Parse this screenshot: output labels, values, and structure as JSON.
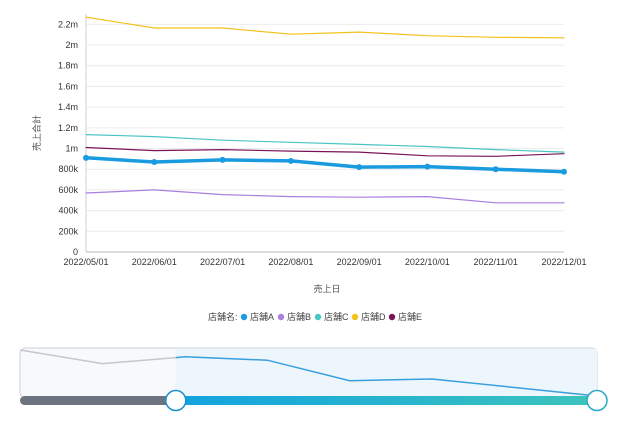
{
  "chart_data": {
    "type": "line",
    "x": [
      "2022/05/01",
      "2022/06/01",
      "2022/07/01",
      "2022/08/01",
      "2022/09/01",
      "2022/10/01",
      "2022/11/01",
      "2022/12/01"
    ],
    "y_ticks": [
      0,
      200000,
      400000,
      600000,
      800000,
      1000000,
      1200000,
      1400000,
      1600000,
      1800000,
      2000000,
      2200000
    ],
    "y_tick_labels": [
      "0",
      "200k",
      "400k",
      "600k",
      "800k",
      "1m",
      "1.2m",
      "1.4m",
      "1.6m",
      "1.8m",
      "2m",
      "2.2m"
    ],
    "ylim": [
      0,
      2300000
    ],
    "xlabel": "売上日",
    "ylabel": "売上合計",
    "legend_title": "店舗名:",
    "legend_position": "bottom",
    "grid": true,
    "series": [
      {
        "name": "店舗A",
        "color": "#1a9be0",
        "highlighted": true,
        "values": [
          910000,
          870000,
          890000,
          880000,
          820000,
          825000,
          800000,
          775000
        ]
      },
      {
        "name": "店舗B",
        "color": "#a97fe0",
        "highlighted": false,
        "values": [
          570000,
          600000,
          555000,
          535000,
          530000,
          535000,
          475000,
          475000
        ]
      },
      {
        "name": "店舗C",
        "color": "#4bc4c4",
        "highlighted": false,
        "values": [
          1135000,
          1115000,
          1080000,
          1060000,
          1040000,
          1020000,
          990000,
          965000
        ]
      },
      {
        "name": "店舗D",
        "color": "#f2c21b",
        "highlighted": false,
        "values": [
          2270000,
          2165000,
          2165000,
          2105000,
          2125000,
          2090000,
          2075000,
          2070000
        ]
      },
      {
        "name": "店舗E",
        "color": "#7a1458",
        "highlighted": false,
        "values": [
          1010000,
          980000,
          990000,
          975000,
          965000,
          930000,
          925000,
          950000
        ]
      }
    ],
    "range_slider": {
      "start_fraction": 0.27,
      "end_fraction": 1.0
    }
  }
}
